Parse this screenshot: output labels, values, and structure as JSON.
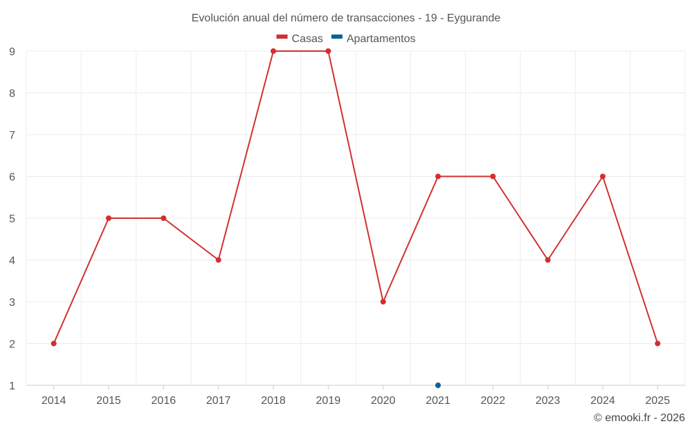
{
  "chart_data": {
    "type": "line",
    "title": "Evolución anual del número de transacciones - 19 - Eygurande",
    "xlabel": "",
    "ylabel": "",
    "categories": [
      "2014",
      "2015",
      "2016",
      "2017",
      "2018",
      "2019",
      "2020",
      "2021",
      "2022",
      "2023",
      "2024",
      "2025"
    ],
    "ylim": [
      1,
      9
    ],
    "yticks": [
      1,
      2,
      3,
      4,
      5,
      6,
      7,
      8,
      9
    ],
    "grid": true,
    "legend_position": "top-center",
    "series": [
      {
        "name": "Casas",
        "color": "#d32f2f",
        "values": [
          2,
          5,
          5,
          4,
          9,
          9,
          3,
          6,
          6,
          4,
          6,
          2
        ]
      },
      {
        "name": "Apartamentos",
        "color": "#0b6296",
        "values": [
          null,
          null,
          null,
          null,
          null,
          null,
          null,
          1,
          null,
          null,
          null,
          null
        ]
      }
    ]
  },
  "credit": "© emooki.fr - 2026"
}
